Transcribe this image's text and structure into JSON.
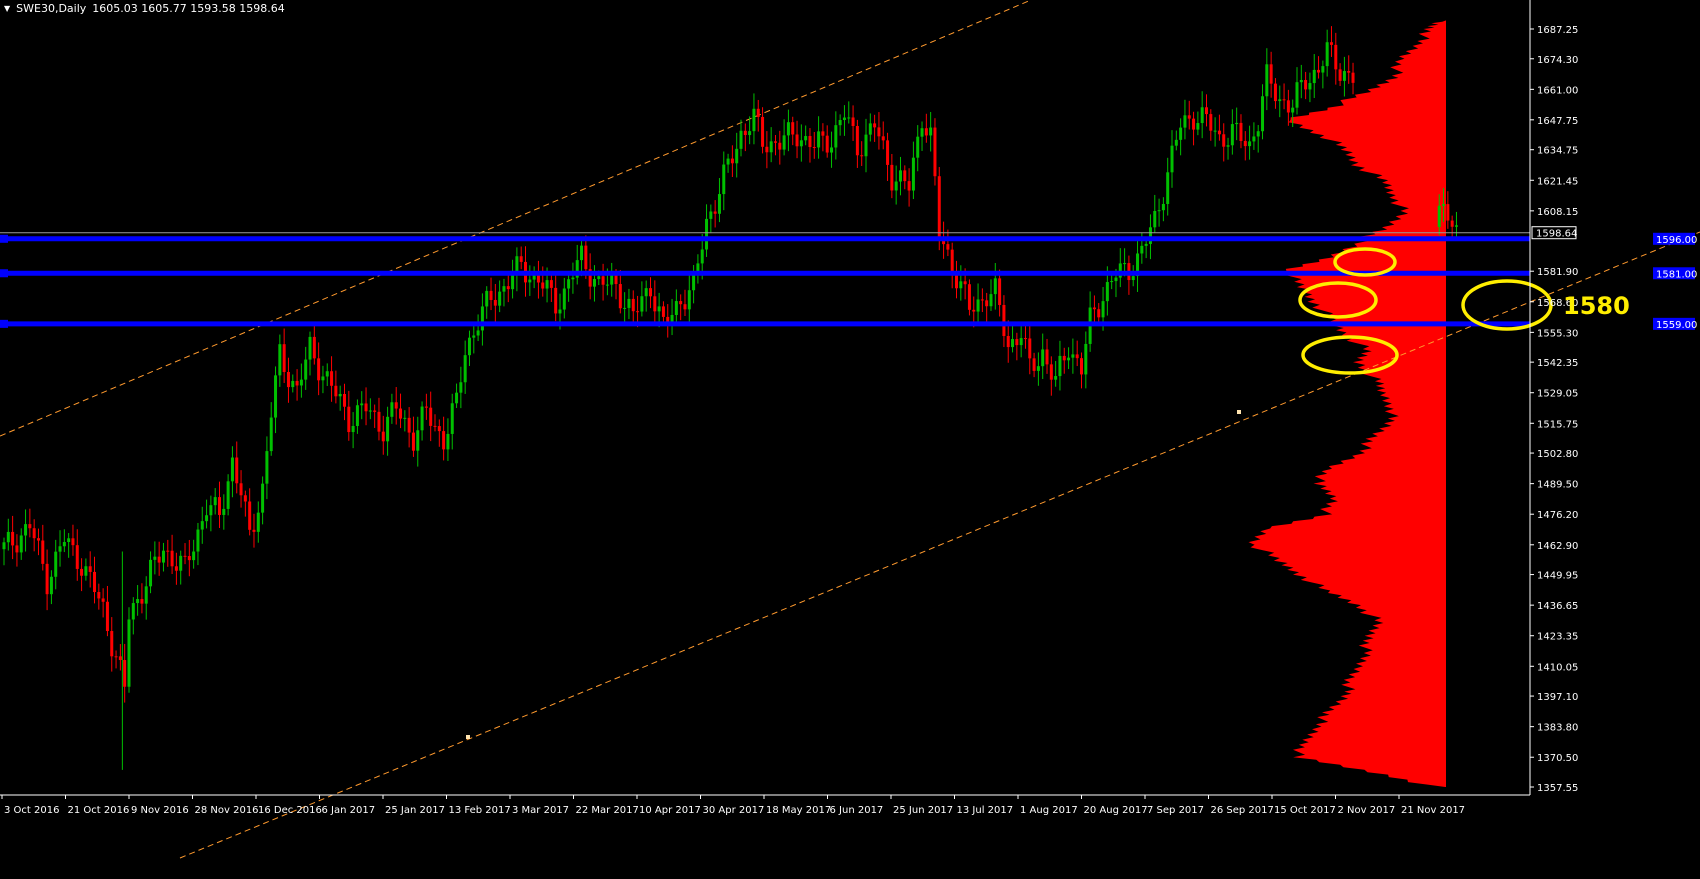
{
  "header": {
    "symbol": "SWE30,Daily",
    "ohlc": "1605.03 1605.77 1593.58 1598.64",
    "menu_icon": "triangle-down-icon"
  },
  "annotation": {
    "text": "1580"
  },
  "colors": {
    "background": "#000000",
    "bull": "#00c000",
    "bear": "#ff0000",
    "profile": "#ff0000",
    "level": "#0000ff",
    "highlight": "#ffee00",
    "channel": "#ff9a2e",
    "axis_text": "#ffffff",
    "price_line": "#9a9a9a"
  },
  "chart_data": {
    "type": "candlestick",
    "title": "SWE30,Daily",
    "xlabel": "",
    "ylabel": "",
    "ylim": [
      1357.55,
      1691.0
    ],
    "yticks": [
      "1687.25",
      "1674.30",
      "1661.00",
      "1647.75",
      "1634.75",
      "1621.45",
      "1608.15",
      "1581.90",
      "1568.60",
      "1555.30",
      "1542.35",
      "1529.05",
      "1515.75",
      "1502.80",
      "1489.50",
      "1476.20",
      "1462.90",
      "1449.95",
      "1436.65",
      "1423.35",
      "1410.05",
      "1397.10",
      "1383.80",
      "1370.50",
      "1357.55"
    ],
    "xticks": [
      "3 Oct 2016",
      "21 Oct 2016",
      "9 Nov 2016",
      "28 Nov 2016",
      "16 Dec 2016",
      "6 Jan 2017",
      "25 Jan 2017",
      "13 Feb 2017",
      "3 Mar 2017",
      "22 Mar 2017",
      "10 Apr 2017",
      "30 Apr 2017",
      "18 May 2017",
      "6 Jun 2017",
      "25 Jun 2017",
      "13 Jul 2017",
      "1 Aug 2017",
      "20 Aug 2017",
      "7 Sep 2017",
      "26 Sep 2017",
      "15 Oct 2017",
      "2 Nov 2017",
      "21 Nov 2017"
    ],
    "current_price": "1598.64",
    "key_levels": [
      1596.0,
      1581.0,
      1559.0
    ],
    "key_level_labels": [
      "1596.00",
      "1581.00",
      "1559.00"
    ],
    "close_path": [
      [
        0,
        1461
      ],
      [
        6,
        1471
      ],
      [
        10,
        1448
      ],
      [
        14,
        1465
      ],
      [
        18,
        1455
      ],
      [
        23,
        1435
      ],
      [
        28,
        1400
      ],
      [
        29,
        1432
      ],
      [
        33,
        1447
      ],
      [
        37,
        1461
      ],
      [
        42,
        1452
      ],
      [
        47,
        1480
      ],
      [
        50,
        1475
      ],
      [
        53,
        1500
      ],
      [
        55,
        1485
      ],
      [
        57,
        1466
      ],
      [
        60,
        1488
      ],
      [
        62,
        1520
      ],
      [
        64,
        1545
      ],
      [
        68,
        1530
      ],
      [
        71,
        1548
      ],
      [
        74,
        1538
      ],
      [
        77,
        1528
      ],
      [
        80,
        1518
      ],
      [
        84,
        1522
      ],
      [
        88,
        1514
      ],
      [
        91,
        1522
      ],
      [
        95,
        1510
      ],
      [
        98,
        1520
      ],
      [
        102,
        1509
      ],
      [
        105,
        1524
      ],
      [
        107,
        1548
      ],
      [
        110,
        1560
      ],
      [
        113,
        1570
      ],
      [
        116,
        1575
      ],
      [
        120,
        1584
      ],
      [
        124,
        1578
      ],
      [
        128,
        1568
      ],
      [
        130,
        1573
      ],
      [
        134,
        1588
      ],
      [
        138,
        1576
      ],
      [
        142,
        1576
      ],
      [
        146,
        1562
      ],
      [
        150,
        1576
      ],
      [
        153,
        1557
      ],
      [
        157,
        1570
      ],
      [
        160,
        1574
      ],
      [
        163,
        1604
      ],
      [
        165,
        1612
      ],
      [
        168,
        1627
      ],
      [
        171,
        1642
      ],
      [
        174,
        1648
      ],
      [
        176,
        1638
      ],
      [
        180,
        1638
      ],
      [
        184,
        1642
      ],
      [
        188,
        1636
      ],
      [
        192,
        1640
      ],
      [
        195,
        1650
      ],
      [
        198,
        1636
      ],
      [
        202,
        1645
      ],
      [
        206,
        1624
      ],
      [
        210,
        1618
      ],
      [
        213,
        1650
      ],
      [
        215,
        1640
      ],
      [
        217,
        1598
      ],
      [
        220,
        1585
      ],
      [
        224,
        1565
      ],
      [
        228,
        1572
      ],
      [
        230,
        1572
      ],
      [
        233,
        1550
      ],
      [
        236,
        1555
      ],
      [
        238,
        1539
      ],
      [
        241,
        1547
      ],
      [
        244,
        1533
      ],
      [
        247,
        1550
      ],
      [
        250,
        1539
      ],
      [
        252,
        1560
      ],
      [
        255,
        1572
      ],
      [
        258,
        1580
      ],
      [
        261,
        1583
      ],
      [
        264,
        1590
      ],
      [
        267,
        1604
      ],
      [
        270,
        1625
      ],
      [
        273,
        1645
      ],
      [
        276,
        1650
      ],
      [
        279,
        1647
      ],
      [
        282,
        1640
      ],
      [
        285,
        1642
      ],
      [
        289,
        1637
      ],
      [
        291,
        1648
      ],
      [
        293,
        1665
      ],
      [
        296,
        1657
      ],
      [
        299,
        1654
      ],
      [
        302,
        1665
      ],
      [
        305,
        1670
      ],
      [
        307,
        1677
      ],
      [
        310,
        1670
      ],
      [
        313,
        1666
      ],
      [
        330,
        1604
      ],
      [
        331,
        1606
      ],
      [
        333,
        1609
      ],
      [
        335,
        1604
      ],
      [
        337,
        1598.64
      ]
    ],
    "volume_profile": [
      [
        1357.55,
        3
      ],
      [
        1364,
        25
      ],
      [
        1370.5,
        52
      ],
      [
        1377,
        48
      ],
      [
        1383.8,
        45
      ],
      [
        1390,
        40
      ],
      [
        1397.1,
        35
      ],
      [
        1403,
        33
      ],
      [
        1410.05,
        30
      ],
      [
        1417,
        28
      ],
      [
        1423.35,
        26
      ],
      [
        1430,
        24
      ],
      [
        1436.65,
        30
      ],
      [
        1443,
        42
      ],
      [
        1449.95,
        50
      ],
      [
        1456,
        58
      ],
      [
        1462.9,
        66
      ],
      [
        1470,
        62
      ],
      [
        1476.2,
        42
      ],
      [
        1483,
        38
      ],
      [
        1489.5,
        45
      ],
      [
        1496,
        40
      ],
      [
        1502.8,
        30
      ],
      [
        1509,
        25
      ],
      [
        1515.75,
        20
      ],
      [
        1522,
        18
      ],
      [
        1529.05,
        22
      ],
      [
        1535,
        25
      ],
      [
        1542.35,
        30
      ],
      [
        1548,
        28
      ],
      [
        1555.3,
        35
      ],
      [
        1561,
        40
      ],
      [
        1568.6,
        45
      ],
      [
        1575,
        50
      ],
      [
        1581.9,
        55
      ],
      [
        1588,
        40
      ],
      [
        1595,
        30
      ],
      [
        1601,
        20
      ],
      [
        1608.15,
        15
      ],
      [
        1615,
        18
      ],
      [
        1621.45,
        22
      ],
      [
        1628,
        30
      ],
      [
        1634.75,
        35
      ],
      [
        1641,
        42
      ],
      [
        1647.75,
        55
      ],
      [
        1654,
        38
      ],
      [
        1661,
        25
      ],
      [
        1667,
        18
      ],
      [
        1674.3,
        15
      ],
      [
        1681,
        10
      ],
      [
        1687.25,
        5
      ],
      [
        1691,
        3
      ]
    ]
  }
}
